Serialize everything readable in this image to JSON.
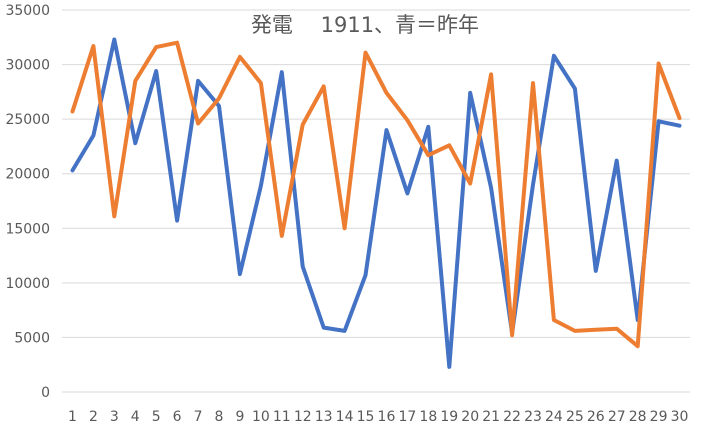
{
  "chart_data": {
    "type": "line",
    "title": "発電　 1911、青＝昨年",
    "xlabel": "",
    "ylabel": "",
    "ylim": [
      0,
      35000
    ],
    "y_ticks": [
      0,
      5000,
      10000,
      15000,
      20000,
      25000,
      30000,
      35000
    ],
    "grid": true,
    "legend": "none",
    "categories": [
      "1",
      "2",
      "3",
      "4",
      "5",
      "6",
      "7",
      "8",
      "9",
      "10",
      "11",
      "12",
      "13",
      "14",
      "15",
      "16",
      "17",
      "18",
      "19",
      "20",
      "21",
      "22",
      "23",
      "24",
      "25",
      "26",
      "27",
      "28",
      "29",
      "30"
    ],
    "series": [
      {
        "color": "#4472C4",
        "values": [
          20300,
          23500,
          32300,
          22800,
          29400,
          15700,
          28500,
          26200,
          10800,
          18900,
          29300,
          11500,
          5900,
          5600,
          10700,
          24000,
          18200,
          24300,
          2300,
          27400,
          18700,
          5400,
          19000,
          30800,
          27800,
          11100,
          21200,
          6600,
          24800,
          24400
        ]
      },
      {
        "color": "#ED7D31",
        "values": [
          25700,
          31700,
          16100,
          28500,
          31600,
          32000,
          24600,
          26900,
          30700,
          28300,
          14300,
          24500,
          28000,
          15000,
          31100,
          27400,
          24900,
          21700,
          22600,
          19100,
          29100,
          5200,
          28300,
          6600,
          5600,
          5700,
          5800,
          4200,
          30100,
          25100
        ]
      }
    ]
  }
}
